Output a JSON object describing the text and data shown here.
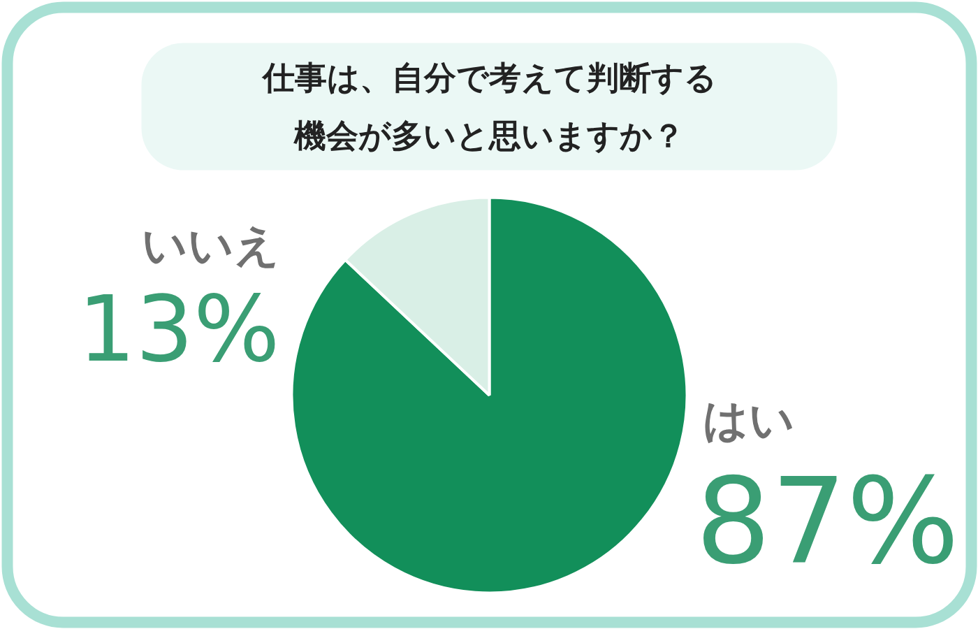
{
  "chart_data": {
    "type": "pie",
    "title": "仕事は、自分で考えて判断する機会が多いと思いますか？",
    "categories": [
      "はい",
      "いいえ"
    ],
    "values": [
      87,
      13
    ],
    "colors": [
      "#128f5a",
      "#d9efe6"
    ],
    "value_labels": [
      "87%",
      "13%"
    ]
  }
}
